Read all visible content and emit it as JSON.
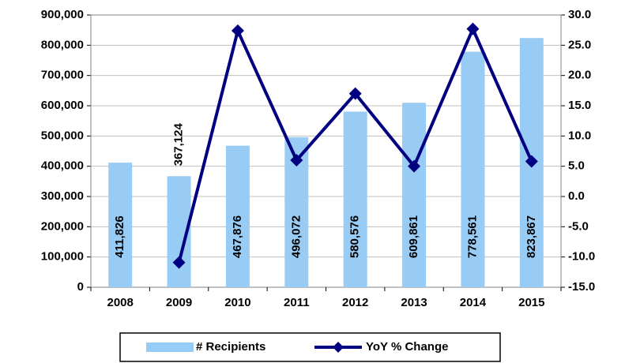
{
  "chart_data": {
    "type": "bar_line",
    "categories": [
      "2008",
      "2009",
      "2010",
      "2011",
      "2012",
      "2013",
      "2014",
      "2015"
    ],
    "series": [
      {
        "name": "# Recipients",
        "color": "#99ccf5",
        "type": "bar",
        "axis": "y",
        "values": [
          411826,
          367124,
          467876,
          496072,
          580576,
          609861,
          778561,
          823867
        ],
        "value_labels": [
          "411,826",
          "367,124",
          "467,876",
          "496,072",
          "580,576",
          "609,861",
          "778,561",
          "823,867"
        ]
      },
      {
        "name": "YoY % Change",
        "color": "#000080",
        "type": "line",
        "axis": "y2",
        "values": [
          null,
          -10.9,
          27.4,
          6.0,
          17.0,
          5.0,
          27.7,
          5.8
        ]
      }
    ],
    "ylim": [
      0,
      900000
    ],
    "yticks": [
      0,
      {
        "value": 100000,
        "label": "100,000"
      },
      {
        "value": 200000,
        "label": "200,000"
      },
      {
        "value": 300000,
        "label": "300,000"
      },
      {
        "value": 400000,
        "label": "400,000"
      },
      {
        "value": 500000,
        "label": "500,000"
      },
      {
        "value": 600000,
        "label": "600,000"
      },
      {
        "value": 700000,
        "label": "700,000"
      },
      {
        "value": 800000,
        "label": "800,000"
      },
      {
        "value": 900000,
        "label": "900,000"
      }
    ],
    "y2lim": [
      -15,
      30
    ],
    "y2ticks": [
      {
        "value": -15,
        "label": "-15.0"
      },
      {
        "value": -10,
        "label": "-10.0"
      },
      {
        "value": -5,
        "label": "-5.0"
      },
      {
        "value": 0,
        "label": "0.0"
      },
      {
        "value": 5,
        "label": "5.0"
      },
      {
        "value": 10,
        "label": "10.0"
      },
      {
        "value": 15,
        "label": "15.0"
      },
      {
        "value": 20,
        "label": "20.0"
      },
      {
        "value": 25,
        "label": "25.0"
      },
      {
        "value": 30,
        "label": "30.0"
      }
    ],
    "grid": true,
    "legend": "bottom"
  }
}
